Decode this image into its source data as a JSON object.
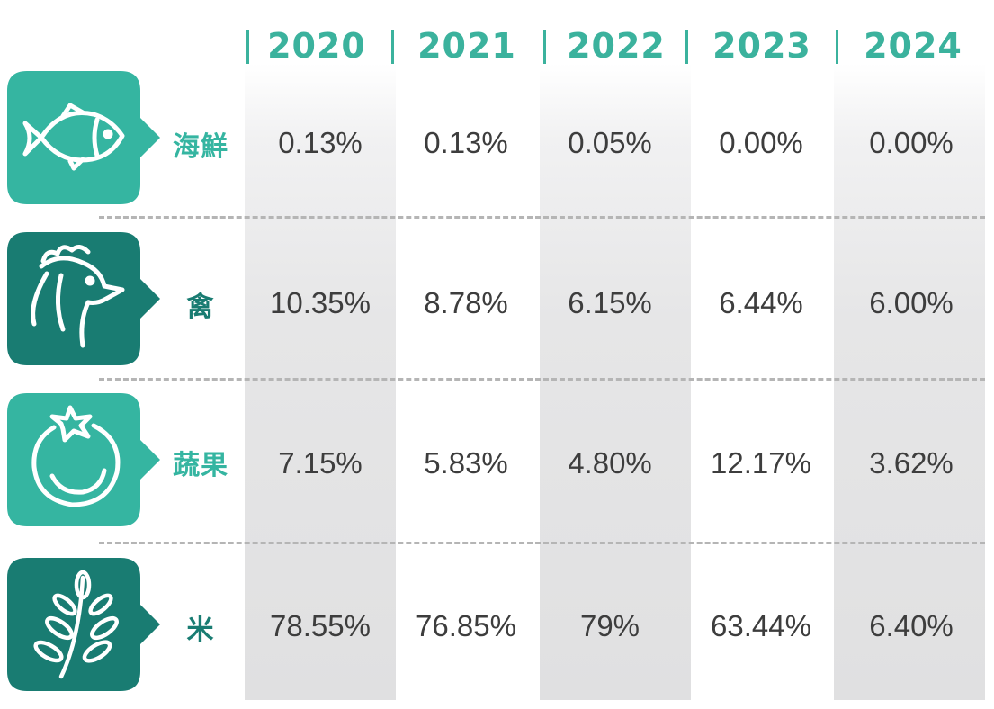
{
  "colors": {
    "teal_light": "#35b5a1",
    "teal_dark": "#197c72",
    "header": "#3bb29d",
    "text": "#3d3d3d"
  },
  "years": [
    "2020",
    "2021",
    "2022",
    "2023",
    "2024"
  ],
  "categories": [
    {
      "label": "海鮮",
      "icon": "fish-icon",
      "tone": "light"
    },
    {
      "label": "禽",
      "icon": "chicken-icon",
      "tone": "dark"
    },
    {
      "label": "蔬果",
      "icon": "tomato-icon",
      "tone": "light"
    },
    {
      "label": "米",
      "icon": "wheat-icon",
      "tone": "dark"
    }
  ],
  "chart_data": {
    "type": "table",
    "columns": [
      "2020",
      "2021",
      "2022",
      "2023",
      "2024"
    ],
    "rows": [
      {
        "category": "海鮮",
        "values": [
          "0.13%",
          "0.13%",
          "0.05%",
          "0.00%",
          "0.00%"
        ]
      },
      {
        "category": "禽",
        "values": [
          "10.35%",
          "8.78%",
          "6.15%",
          "6.44%",
          "6.00%"
        ]
      },
      {
        "category": "蔬果",
        "values": [
          "7.15%",
          "5.83%",
          "4.80%",
          "12.17%",
          "3.62%"
        ]
      },
      {
        "category": "米",
        "values": [
          "78.55%",
          "76.85%",
          "79%",
          "63.44%",
          "6.40%"
        ]
      }
    ]
  }
}
